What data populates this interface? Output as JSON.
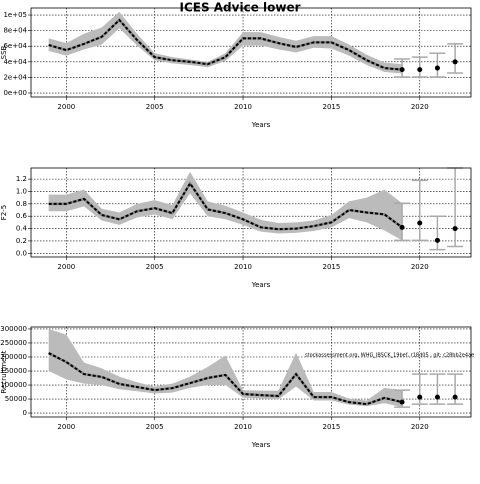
{
  "title": "ICES Advice lower",
  "chart_data": [
    {
      "type": "line",
      "ylabel": "SSB",
      "xlabel": "Years",
      "x": [
        1999,
        2000,
        2001,
        2002,
        2003,
        2004,
        2005,
        2006,
        2007,
        2008,
        2009,
        2010,
        2011,
        2012,
        2013,
        2014,
        2015,
        2016,
        2017,
        2018,
        2019
      ],
      "values": [
        61500,
        55000,
        63000,
        72000,
        93600,
        68000,
        46000,
        42000,
        40000,
        37000,
        46000,
        70000,
        70000,
        64000,
        59000,
        65000,
        65000,
        55000,
        42000,
        32000,
        30000
      ],
      "upper": [
        70000,
        64000,
        76000,
        84000,
        104000,
        76000,
        51000,
        46000,
        43000,
        40000,
        51000,
        78000,
        78000,
        72000,
        67000,
        73000,
        73000,
        62000,
        49000,
        39000,
        37000
      ],
      "lower": [
        54000,
        48000,
        56000,
        62000,
        83000,
        61000,
        42000,
        38000,
        36000,
        33000,
        41000,
        61000,
        61000,
        56000,
        52000,
        58000,
        57000,
        48000,
        36000,
        27000,
        25000
      ],
      "forecast_x": [
        2019,
        2020,
        2021,
        2022
      ],
      "forecast_values": [
        30000,
        30000,
        32000,
        40000
      ],
      "forecast_lower": [
        20500,
        20500,
        20500,
        25600
      ],
      "forecast_upper": [
        43600,
        46000,
        51000,
        63000
      ],
      "xlim": [
        1998,
        2022.9
      ],
      "xticks": [
        2000,
        2005,
        2010,
        2015,
        2020
      ],
      "ylim": [
        -5100,
        109000
      ],
      "yticks": [
        {
          "value": 0,
          "label": "0e+00"
        },
        {
          "value": 20000,
          "label": "2e+04"
        },
        {
          "value": 40000,
          "label": "4e+04"
        },
        {
          "value": 60000,
          "label": "6e+04"
        },
        {
          "value": 80000,
          "label": "8e+04"
        },
        {
          "value": 100000,
          "label": "1e+05"
        }
      ],
      "grid": true
    },
    {
      "type": "line",
      "ylabel": "F2-5",
      "xlabel": "Years",
      "x": [
        1999,
        2000,
        2001,
        2002,
        2003,
        2004,
        2005,
        2006,
        2007,
        2008,
        2009,
        2010,
        2011,
        2012,
        2013,
        2014,
        2015,
        2016,
        2017,
        2018,
        2019
      ],
      "values": [
        0.8,
        0.8,
        0.88,
        0.62,
        0.55,
        0.68,
        0.73,
        0.65,
        1.13,
        0.71,
        0.65,
        0.55,
        0.42,
        0.39,
        0.4,
        0.44,
        0.5,
        0.7,
        0.66,
        0.63,
        0.42
      ],
      "upper": [
        0.95,
        0.95,
        1.03,
        0.72,
        0.66,
        0.8,
        0.86,
        0.78,
        1.32,
        0.84,
        0.77,
        0.66,
        0.54,
        0.49,
        0.5,
        0.53,
        0.62,
        0.84,
        0.9,
        1.03,
        0.81
      ],
      "lower": [
        0.68,
        0.68,
        0.76,
        0.53,
        0.46,
        0.58,
        0.63,
        0.55,
        0.97,
        0.6,
        0.55,
        0.46,
        0.35,
        0.32,
        0.33,
        0.36,
        0.42,
        0.57,
        0.5,
        0.37,
        0.21
      ],
      "forecast_x": [
        2019,
        2020,
        2021,
        2022
      ],
      "forecast_values": [
        0.42,
        0.49,
        0.21,
        0.4
      ],
      "forecast_lower": [
        0.21,
        0.21,
        0.06,
        0.11
      ],
      "forecast_upper": [
        0.81,
        1.18,
        0.6,
        1.38
      ],
      "xlim": [
        1998,
        2022.9
      ],
      "xticks": [
        2000,
        2005,
        2010,
        2015,
        2020
      ],
      "ylim": [
        -0.06,
        1.38
      ],
      "yticks": [
        {
          "value": 0,
          "label": "0.0"
        },
        {
          "value": 0.2,
          "label": "0.2"
        },
        {
          "value": 0.4,
          "label": "0.4"
        },
        {
          "value": 0.6,
          "label": "0.6"
        },
        {
          "value": 0.8,
          "label": "0.8"
        },
        {
          "value": 1,
          "label": "1.0"
        },
        {
          "value": 1.2,
          "label": "1.2"
        }
      ],
      "grid": true
    },
    {
      "type": "line",
      "ylabel": "Recruitment",
      "xlabel": "Years",
      "annotation": "stockassessment.org, WHG_IBSCK_19bef, r18d05 , git: c28bb2e4ae",
      "x": [
        1999,
        2000,
        2001,
        2002,
        2003,
        2004,
        2005,
        2006,
        2007,
        2008,
        2009,
        2010,
        2011,
        2012,
        2013,
        2014,
        2015,
        2016,
        2017,
        2018,
        2019
      ],
      "values": [
        214000,
        182000,
        139000,
        129000,
        104000,
        93000,
        82000,
        89000,
        107000,
        125000,
        136000,
        68000,
        64000,
        61000,
        139000,
        57000,
        57000,
        39000,
        32000,
        54000,
        39000
      ],
      "upper": [
        300000,
        280000,
        180000,
        160000,
        130000,
        110000,
        95000,
        105000,
        130000,
        165000,
        205000,
        82000,
        80000,
        80000,
        215000,
        75000,
        75000,
        52000,
        45000,
        90000,
        82000
      ],
      "lower": [
        150000,
        120000,
        105000,
        100000,
        85000,
        78000,
        70000,
        73000,
        90000,
        100000,
        100000,
        55000,
        52000,
        49000,
        95000,
        45000,
        45000,
        30000,
        25000,
        35000,
        21000
      ],
      "forecast_x": [
        2019,
        2020,
        2021,
        2022
      ],
      "forecast_values": [
        39000,
        57000,
        57000,
        57000
      ],
      "forecast_lower": [
        21000,
        32000,
        32000,
        32000
      ],
      "forecast_upper": [
        82000,
        139000,
        139000,
        139000
      ],
      "xlim": [
        1998,
        2022.9
      ],
      "xticks": [
        2000,
        2005,
        2010,
        2015,
        2020
      ],
      "ylim": [
        -14000,
        307000
      ],
      "yticks": [
        0,
        50000,
        100000,
        150000,
        200000,
        250000,
        300000
      ],
      "grid": true
    }
  ]
}
